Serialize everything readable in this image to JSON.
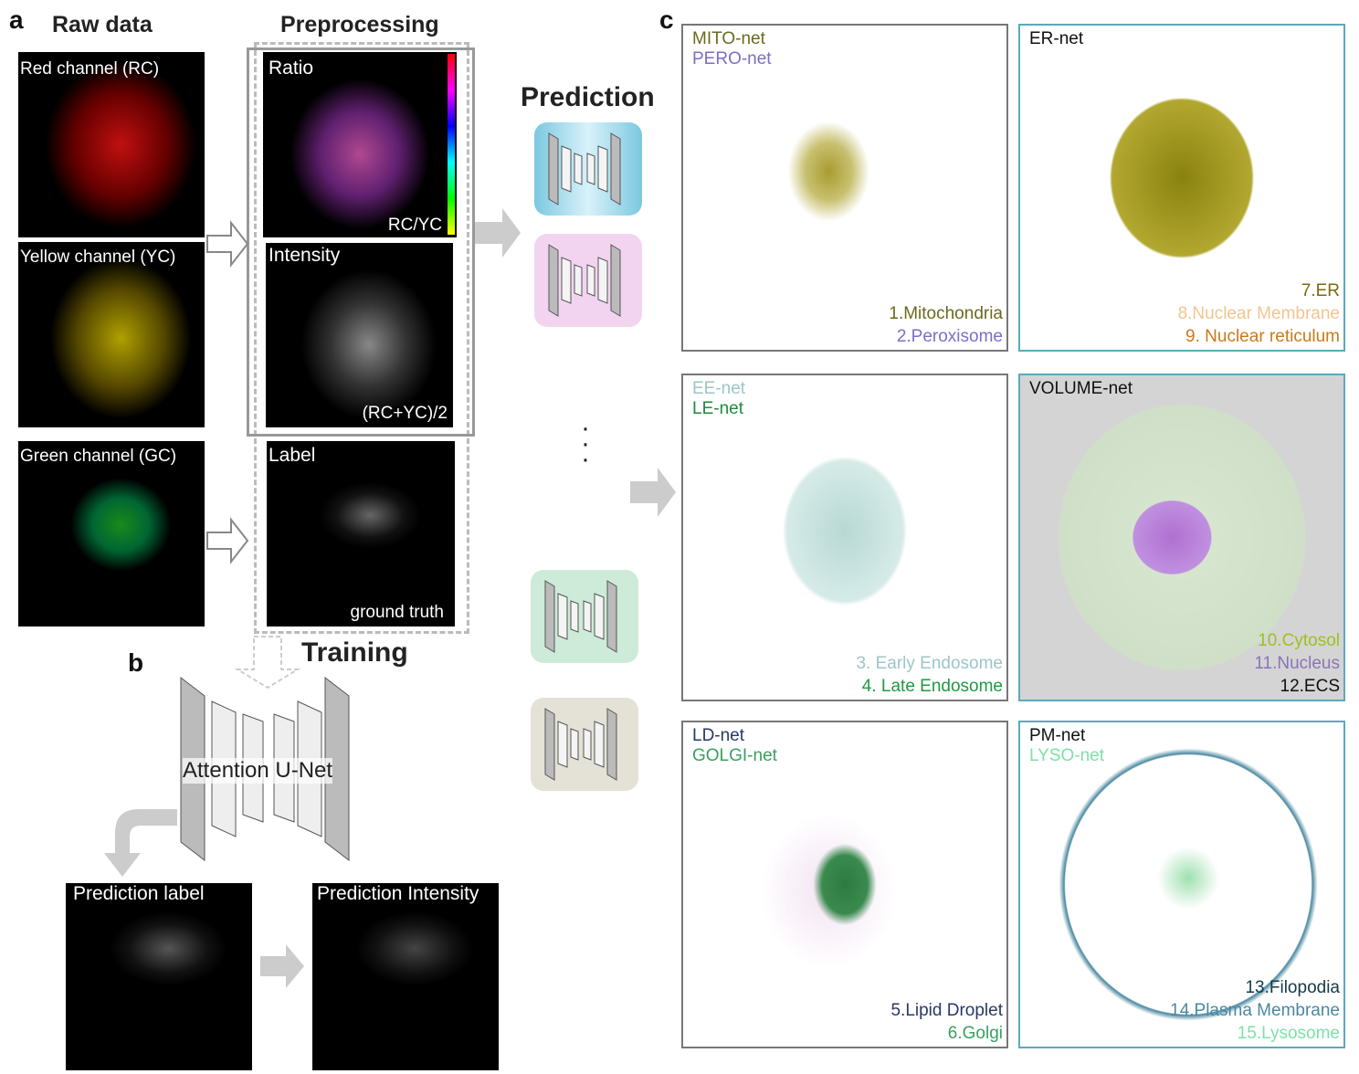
{
  "panel_a": {
    "letter": "a",
    "raw_title": "Raw data",
    "pre_title": "Preprocessing",
    "raw": [
      {
        "label": "Red channel (RC)"
      },
      {
        "label": "Yellow channel (YC)"
      },
      {
        "label": "Green channel (GC)"
      }
    ],
    "ratio": {
      "label": "Ratio",
      "sub": "RC/YC"
    },
    "intensity": {
      "label": "Intensity",
      "sub": "(RC+YC)/2"
    },
    "label_img": {
      "label": "Label",
      "sub": "ground truth"
    },
    "prediction_title": "Prediction",
    "net_colors": [
      "#a8dcea",
      "#f3d4f0",
      "#cdebd8",
      "#e4e2d6"
    ]
  },
  "panel_b": {
    "letter": "b",
    "training_title": "Training",
    "network": "Attention U-Net",
    "pred_label": "Prediction label",
    "pred_intensity": "Prediction Intensity"
  },
  "panel_c": {
    "letter": "c",
    "panels": [
      {
        "nets": [
          {
            "t": "MITO-net",
            "c": "#6b6a1e"
          },
          {
            "t": "PERO-net",
            "c": "#7b6fc6"
          }
        ],
        "items": [
          {
            "t": "1.Mitochondria",
            "c": "#6b6a1e"
          },
          {
            "t": "2.Peroxisome",
            "c": "#7b6fc6"
          }
        ]
      },
      {
        "nets": [
          {
            "t": "ER-net",
            "c": "#111111"
          }
        ],
        "items": [
          {
            "t": "7.ER",
            "c": "#7a6a10"
          },
          {
            "t": "8.Nuclear Membrane",
            "c": "#f0c590"
          },
          {
            "t": "9. Nuclear reticulum",
            "c": "#c97a1a"
          }
        ]
      },
      {
        "nets": [
          {
            "t": "EE-net",
            "c": "#9cc6c6"
          },
          {
            "t": "LE-net",
            "c": "#1e8a3e"
          }
        ],
        "items": [
          {
            "t": "3. Early Endosome",
            "c": "#9cc6c6"
          },
          {
            "t": "4. Late Endosome",
            "c": "#1e9a40"
          }
        ]
      },
      {
        "nets": [
          {
            "t": "VOLUME-net",
            "c": "#111111"
          }
        ],
        "items": [
          {
            "t": "10.Cytosol",
            "c": "#9ac21e"
          },
          {
            "t": "11.Nucleus",
            "c": "#8a74b8"
          },
          {
            "t": "12.ECS",
            "c": "#111111"
          }
        ]
      },
      {
        "nets": [
          {
            "t": "LD-net",
            "c": "#283868"
          },
          {
            "t": "GOLGI-net",
            "c": "#3aa060"
          }
        ],
        "items": [
          {
            "t": "5.Lipid Droplet",
            "c": "#283868"
          },
          {
            "t": "6.Golgi",
            "c": "#3aa060"
          }
        ]
      },
      {
        "nets": [
          {
            "t": "PM-net",
            "c": "#111111"
          },
          {
            "t": "LYSO-net",
            "c": "#7ee0a8"
          }
        ],
        "items": [
          {
            "t": "13.Filopodia",
            "c": "#143a4a"
          },
          {
            "t": "14.Plasma Membrane",
            "c": "#4a88a0"
          },
          {
            "t": "15.Lysosome",
            "c": "#7ee0a8"
          }
        ]
      }
    ]
  }
}
